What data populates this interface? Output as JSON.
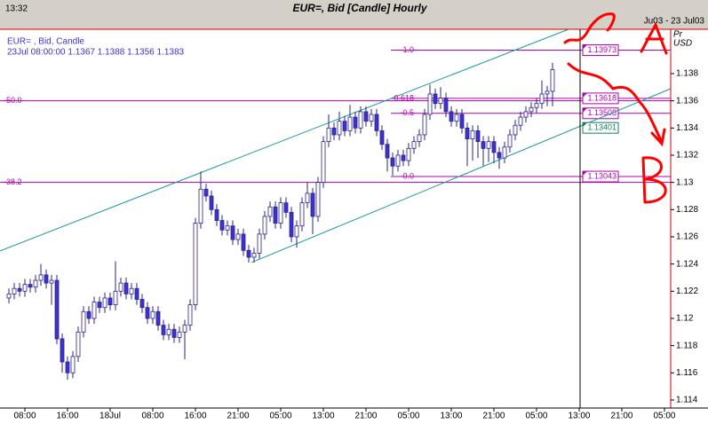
{
  "header": {
    "time": "13:32",
    "title": "EUR=, Bid [Candle] Hourly",
    "date_range": "Ju03 - 23 Jul03"
  },
  "chart_data": {
    "type": "candlestick",
    "legend": {
      "instrument": "EUR= , Bid, Candle",
      "last": "23Jul 08:00:00 1.1367 1.1388 1.1356 1.1383"
    },
    "y_unit": [
      "Pr",
      "USD"
    ],
    "up_color": "#ffffff",
    "down_color": "#3c33c8",
    "wick_color": "#2a2090",
    "candles": [
      [
        1.1215,
        1.1222,
        1.1211,
        1.1218
      ],
      [
        1.1218,
        1.1226,
        1.1214,
        1.1222
      ],
      [
        1.1222,
        1.1226,
        1.1216,
        1.122
      ],
      [
        1.122,
        1.1229,
        1.1216,
        1.1225
      ],
      [
        1.1225,
        1.1229,
        1.1219,
        1.1223
      ],
      [
        1.1223,
        1.1232,
        1.1219,
        1.1228
      ],
      [
        1.1228,
        1.124,
        1.1224,
        1.1232
      ],
      [
        1.1232,
        1.1236,
        1.1222,
        1.1226
      ],
      [
        1.1226,
        1.1232,
        1.121,
        1.1228
      ],
      [
        1.1228,
        1.1232,
        1.1181,
        1.1185
      ],
      [
        1.1185,
        1.1189,
        1.116,
        1.1168
      ],
      [
        1.1168,
        1.1172,
        1.1155,
        1.116
      ],
      [
        1.116,
        1.1176,
        1.1156,
        1.1172
      ],
      [
        1.1172,
        1.1194,
        1.1168,
        1.119
      ],
      [
        1.119,
        1.1209,
        1.1186,
        1.1205
      ],
      [
        1.1205,
        1.1209,
        1.1196,
        1.12
      ],
      [
        1.12,
        1.1216,
        1.1196,
        1.1212
      ],
      [
        1.1212,
        1.1216,
        1.1204,
        1.1208
      ],
      [
        1.1208,
        1.1219,
        1.1204,
        1.1215
      ],
      [
        1.1215,
        1.1219,
        1.1206,
        1.121
      ],
      [
        1.121,
        1.1242,
        1.1206,
        1.122
      ],
      [
        1.122,
        1.123,
        1.1216,
        1.1226
      ],
      [
        1.1226,
        1.123,
        1.1214,
        1.1218
      ],
      [
        1.1218,
        1.1226,
        1.1214,
        1.1222
      ],
      [
        1.1222,
        1.1226,
        1.121,
        1.1214
      ],
      [
        1.1214,
        1.1218,
        1.1204,
        1.1208
      ],
      [
        1.1208,
        1.1212,
        1.1196,
        1.12
      ],
      [
        1.12,
        1.1209,
        1.1196,
        1.1205
      ],
      [
        1.1205,
        1.1209,
        1.1191,
        1.1195
      ],
      [
        1.1195,
        1.1199,
        1.1184,
        1.1188
      ],
      [
        1.1188,
        1.1196,
        1.1184,
        1.1192
      ],
      [
        1.1192,
        1.1196,
        1.1182,
        1.1186
      ],
      [
        1.1186,
        1.1194,
        1.1182,
        1.119
      ],
      [
        1.119,
        1.1199,
        1.117,
        1.1195
      ],
      [
        1.1195,
        1.1214,
        1.1191,
        1.121
      ],
      [
        1.121,
        1.1274,
        1.1206,
        1.127
      ],
      [
        1.127,
        1.1308,
        1.1266,
        1.1295
      ],
      [
        1.1295,
        1.1299,
        1.1286,
        1.129
      ],
      [
        1.129,
        1.1294,
        1.1276,
        1.128
      ],
      [
        1.128,
        1.1284,
        1.1268,
        1.1272
      ],
      [
        1.1272,
        1.1276,
        1.1261,
        1.1265
      ],
      [
        1.1265,
        1.1272,
        1.1261,
        1.1268
      ],
      [
        1.1268,
        1.1272,
        1.1254,
        1.1258
      ],
      [
        1.1258,
        1.1266,
        1.1254,
        1.1262
      ],
      [
        1.1262,
        1.1266,
        1.1246,
        1.125
      ],
      [
        1.125,
        1.1254,
        1.1241,
        1.1245
      ],
      [
        1.1245,
        1.1252,
        1.1241,
        1.1248
      ],
      [
        1.1248,
        1.1266,
        1.1244,
        1.1262
      ],
      [
        1.1262,
        1.1279,
        1.1258,
        1.1275
      ],
      [
        1.1275,
        1.1286,
        1.1271,
        1.1282
      ],
      [
        1.1282,
        1.1286,
        1.1266,
        1.127
      ],
      [
        1.127,
        1.1289,
        1.1266,
        1.1285
      ],
      [
        1.1285,
        1.1289,
        1.1274,
        1.1278
      ],
      [
        1.1278,
        1.1282,
        1.1256,
        1.126
      ],
      [
        1.126,
        1.1272,
        1.1252,
        1.1268
      ],
      [
        1.1268,
        1.1289,
        1.1264,
        1.1285
      ],
      [
        1.1285,
        1.13,
        1.1281,
        1.1292
      ],
      [
        1.1292,
        1.1296,
        1.1262,
        1.1275
      ],
      [
        1.1275,
        1.1304,
        1.1271,
        1.13
      ],
      [
        1.13,
        1.1334,
        1.1296,
        1.133
      ],
      [
        1.133,
        1.135,
        1.1326,
        1.134
      ],
      [
        1.134,
        1.1344,
        1.1331,
        1.1335
      ],
      [
        1.1335,
        1.1352,
        1.1331,
        1.1345
      ],
      [
        1.1345,
        1.1349,
        1.1334,
        1.1338
      ],
      [
        1.1338,
        1.1357,
        1.1334,
        1.1348
      ],
      [
        1.1348,
        1.1352,
        1.1336,
        1.134
      ],
      [
        1.134,
        1.1356,
        1.1336,
        1.1352
      ],
      [
        1.1352,
        1.1356,
        1.1341,
        1.1345
      ],
      [
        1.1345,
        1.1354,
        1.1341,
        1.135
      ],
      [
        1.135,
        1.1354,
        1.1334,
        1.1338
      ],
      [
        1.1338,
        1.1342,
        1.1324,
        1.1328
      ],
      [
        1.1328,
        1.1332,
        1.1308,
        1.1318
      ],
      [
        1.1318,
        1.1322,
        1.1305,
        1.1312
      ],
      [
        1.1312,
        1.1324,
        1.1308,
        1.132
      ],
      [
        1.132,
        1.1324,
        1.1312,
        1.1316
      ],
      [
        1.1316,
        1.1329,
        1.1312,
        1.1325
      ],
      [
        1.1325,
        1.1334,
        1.1321,
        1.133
      ],
      [
        1.133,
        1.1339,
        1.1326,
        1.1335
      ],
      [
        1.1335,
        1.1354,
        1.1331,
        1.135
      ],
      [
        1.135,
        1.1372,
        1.1346,
        1.1365
      ],
      [
        1.1365,
        1.1369,
        1.1354,
        1.1358
      ],
      [
        1.1358,
        1.137,
        1.1354,
        1.1362
      ],
      [
        1.1362,
        1.1366,
        1.1348,
        1.1352
      ],
      [
        1.1352,
        1.1356,
        1.1341,
        1.1345
      ],
      [
        1.1345,
        1.1354,
        1.1341,
        1.135
      ],
      [
        1.135,
        1.1354,
        1.1336,
        1.134
      ],
      [
        1.134,
        1.1344,
        1.1312,
        1.1332
      ],
      [
        1.1332,
        1.1342,
        1.1316,
        1.1338
      ],
      [
        1.1338,
        1.1342,
        1.1318,
        1.133
      ],
      [
        1.133,
        1.1334,
        1.1312,
        1.1325
      ],
      [
        1.1325,
        1.1334,
        1.1315,
        1.133
      ],
      [
        1.133,
        1.1334,
        1.1314,
        1.1322
      ],
      [
        1.1322,
        1.1326,
        1.131,
        1.1318
      ],
      [
        1.1318,
        1.133,
        1.1314,
        1.1326
      ],
      [
        1.1326,
        1.1339,
        1.1322,
        1.1335
      ],
      [
        1.1335,
        1.1346,
        1.1331,
        1.1342
      ],
      [
        1.1342,
        1.1352,
        1.1338,
        1.1348
      ],
      [
        1.1348,
        1.1356,
        1.1344,
        1.1352
      ],
      [
        1.1352,
        1.1359,
        1.1348,
        1.1355
      ],
      [
        1.1355,
        1.1362,
        1.1351,
        1.1358
      ],
      [
        1.1358,
        1.1375,
        1.1354,
        1.1365
      ],
      [
        1.1365,
        1.1371,
        1.1356,
        1.1367
      ],
      [
        1.1367,
        1.1388,
        1.1356,
        1.1383
      ]
    ],
    "xlim": [
      -1.67,
      124.17
    ],
    "xticks": [
      {
        "value": 3,
        "label": "08:00"
      },
      {
        "value": 11,
        "label": "16:00"
      },
      {
        "value": 19,
        "label": "18Jul"
      },
      {
        "value": 27,
        "label": "08:00"
      },
      {
        "value": 35,
        "label": "16:00"
      },
      {
        "value": 43,
        "label": "21:00"
      },
      {
        "value": 51,
        "label": "05:00"
      },
      {
        "value": 59,
        "label": "13:00"
      },
      {
        "value": 67,
        "label": "21:00"
      },
      {
        "value": 75,
        "label": "05:00"
      },
      {
        "value": 83,
        "label": "13:00"
      },
      {
        "value": 91,
        "label": "21:00"
      },
      {
        "value": 99,
        "label": "05:00"
      },
      {
        "value": 107,
        "label": "13:00"
      },
      {
        "value": 115,
        "label": "21:00"
      },
      {
        "value": 123,
        "label": "05:00"
      }
    ],
    "ylim": [
      1.11341,
      1.14126
    ],
    "yticks": [
      1.114,
      1.116,
      1.118,
      1.12,
      1.122,
      1.124,
      1.126,
      1.128,
      1.13,
      1.132,
      1.134,
      1.136,
      1.138
    ],
    "fib_color": "#b000b0",
    "fib_levels": [
      {
        "label": "-1.0",
        "value": 1.13973
      },
      {
        "label": "-0.618",
        "value": 1.13618
      },
      {
        "label": "-0.5",
        "value": 1.13508
      },
      {
        "label": "-0.0",
        "value": 1.13043
      }
    ],
    "retracements": [
      {
        "label": "-50.0",
        "value": 1.136
      },
      {
        "label": "-38.2",
        "value": 1.13
      }
    ],
    "channel": {
      "color": "#1a9a9a",
      "label_color": "#108060",
      "label_value": 1.13401,
      "upper": {
        "x": [
          -1.67,
          105
        ],
        "y": [
          1.12496,
          1.14126
        ]
      },
      "lower": {
        "x": [
          45.5,
          124.17
        ],
        "y": [
          1.12411,
          1.13689
        ]
      }
    }
  }
}
